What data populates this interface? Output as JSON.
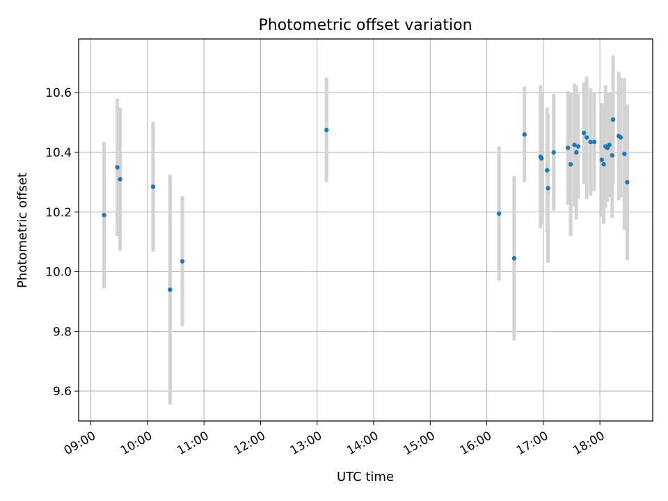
{
  "chart_data": {
    "type": "scatter",
    "title": "Photometric offset variation",
    "xlabel": "UTC time",
    "ylabel": "Photometric offset",
    "x_ticks": [
      "09:00",
      "10:00",
      "11:00",
      "12:00",
      "13:00",
      "14:00",
      "15:00",
      "16:00",
      "17:00",
      "18:00"
    ],
    "y_ticks": [
      "9.6",
      "9.8",
      "10.0",
      "10.2",
      "10.4",
      "10.6"
    ],
    "xlim": [
      "08:47",
      "18:56"
    ],
    "ylim": [
      9.5,
      10.78
    ],
    "grid": true,
    "error_bar_color": "#d3d3d3",
    "marker_color": "#1f77b4",
    "series": [
      {
        "points": [
          {
            "x": "09:14",
            "y": 10.19,
            "err": 0.245
          },
          {
            "x": "09:28",
            "y": 10.35,
            "err": 0.23
          },
          {
            "x": "09:31",
            "y": 10.31,
            "err": 0.24
          },
          {
            "x": "10:06",
            "y": 10.285,
            "err": 0.218
          },
          {
            "x": "10:24",
            "y": 9.94,
            "err": 0.385
          },
          {
            "x": "10:37",
            "y": 10.035,
            "err": 0.218
          },
          {
            "x": "13:10",
            "y": 10.475,
            "err": 0.175
          },
          {
            "x": "16:13",
            "y": 10.195,
            "err": 0.225
          },
          {
            "x": "16:29",
            "y": 10.045,
            "err": 0.275
          },
          {
            "x": "16:40",
            "y": 10.46,
            "err": 0.16
          },
          {
            "x": "16:57",
            "y": 10.385,
            "err": 0.24
          },
          {
            "x": "16:58",
            "y": 10.38,
            "err": 0.22
          },
          {
            "x": "17:04",
            "y": 10.34,
            "err": 0.21
          },
          {
            "x": "17:05",
            "y": 10.28,
            "err": 0.25
          },
          {
            "x": "17:11",
            "y": 10.4,
            "err": 0.195
          },
          {
            "x": "17:26",
            "y": 10.415,
            "err": 0.19
          },
          {
            "x": "17:29",
            "y": 10.36,
            "err": 0.24
          },
          {
            "x": "17:33",
            "y": 10.425,
            "err": 0.205
          },
          {
            "x": "17:35",
            "y": 10.4,
            "err": 0.225
          },
          {
            "x": "17:37",
            "y": 10.42,
            "err": 0.175
          },
          {
            "x": "17:43",
            "y": 10.465,
            "err": 0.17
          },
          {
            "x": "17:46",
            "y": 10.45,
            "err": 0.205
          },
          {
            "x": "17:50",
            "y": 10.435,
            "err": 0.18
          },
          {
            "x": "17:54",
            "y": 10.435,
            "err": 0.165
          },
          {
            "x": "18:02",
            "y": 10.375,
            "err": 0.19
          },
          {
            "x": "18:04",
            "y": 10.36,
            "err": 0.2
          },
          {
            "x": "18:06",
            "y": 10.42,
            "err": 0.205
          },
          {
            "x": "18:08",
            "y": 10.415,
            "err": 0.18
          },
          {
            "x": "18:10",
            "y": 10.425,
            "err": 0.175
          },
          {
            "x": "18:13",
            "y": 10.39,
            "err": 0.21
          },
          {
            "x": "18:14",
            "y": 10.51,
            "err": 0.215
          },
          {
            "x": "18:20",
            "y": 10.455,
            "err": 0.215
          },
          {
            "x": "18:22",
            "y": 10.45,
            "err": 0.2
          },
          {
            "x": "18:26",
            "y": 10.395,
            "err": 0.255
          },
          {
            "x": "18:29",
            "y": 10.3,
            "err": 0.26
          }
        ]
      }
    ]
  }
}
